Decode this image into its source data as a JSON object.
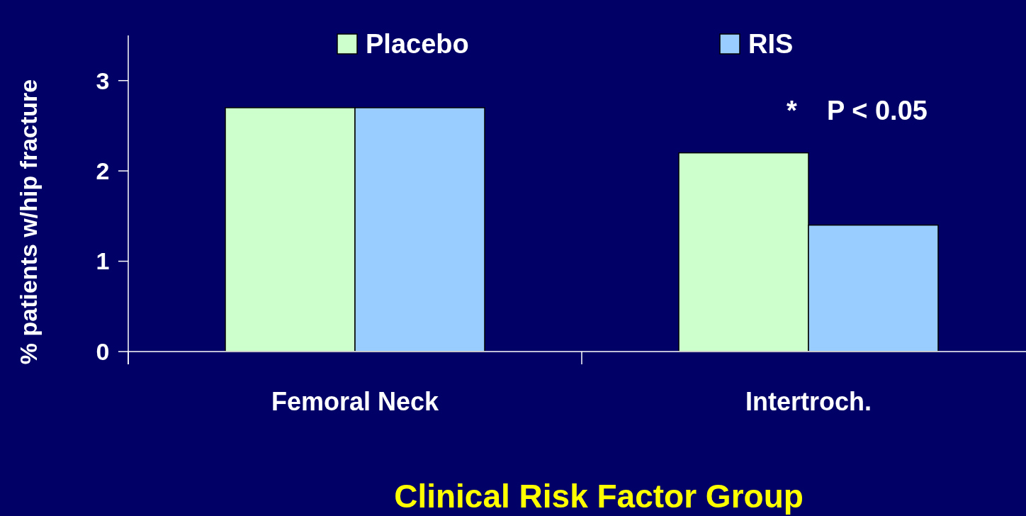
{
  "chart_data": {
    "type": "bar",
    "xlabel": "Clinical Risk Factor Group",
    "ylabel": "% patients w/hip fracture",
    "categories": [
      "Femoral Neck",
      "Intertroch."
    ],
    "series": [
      {
        "name": "Placebo",
        "color": "#ccffcc",
        "values": [
          2.7,
          2.2
        ]
      },
      {
        "name": "RIS",
        "color": "#99ccff",
        "values": [
          2.7,
          1.4
        ]
      }
    ],
    "ylim": [
      0,
      3.5
    ],
    "yticks": [
      0,
      1,
      2,
      3
    ],
    "legend": "top",
    "grid": false,
    "annotations": [
      "*    P < 0.05"
    ]
  }
}
